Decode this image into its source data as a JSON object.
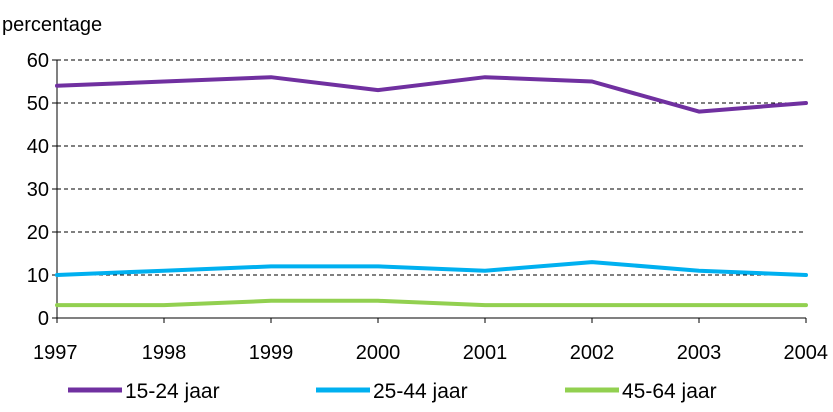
{
  "chart_data": {
    "type": "line",
    "title": "",
    "ylabel": "percentage",
    "xlabel": "",
    "ylim": [
      0,
      60
    ],
    "yticks": [
      0,
      10,
      20,
      30,
      40,
      50,
      60
    ],
    "x": [
      "1997",
      "1998",
      "1999",
      "2000",
      "2001",
      "2002",
      "2003",
      "2004"
    ],
    "grid": "horizontal-dashed",
    "legend_position": "bottom",
    "series": [
      {
        "name": "15-24 jaar",
        "color": "#7030A0",
        "values": [
          54,
          55,
          56,
          53,
          56,
          55,
          48,
          50
        ]
      },
      {
        "name": "25-44 jaar",
        "color": "#00B0F0",
        "values": [
          10,
          11,
          12,
          12,
          11,
          13,
          11,
          10
        ]
      },
      {
        "name": "45-64 jaar",
        "color": "#92D050",
        "values": [
          3,
          3,
          4,
          4,
          3,
          3,
          3,
          3
        ]
      }
    ]
  }
}
